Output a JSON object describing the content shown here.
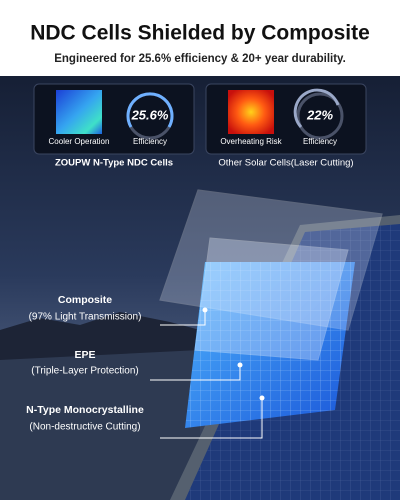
{
  "header": {
    "title": "NDC Cells Shielded by Composite",
    "subtitle": "Engineered for 25.6% efficiency & 20+ year durability."
  },
  "comparison": [
    {
      "thermal_label": "Cooler Operation",
      "efficiency": "25.6%",
      "efficiency_label": "Efficiency",
      "caption": "ZOUPW N-Type NDC Cells"
    },
    {
      "thermal_label": "Overheating Risk",
      "efficiency": "22%",
      "efficiency_label": "Efficiency",
      "caption": "Other Solar Cells(Laser Cutting)"
    }
  ],
  "layers": [
    {
      "name": "Composite",
      "detail": "(97% Light Transmission)"
    },
    {
      "name": "EPE",
      "detail": "(Triple-Layer Protection)"
    },
    {
      "name": "N-Type Monocrystalline",
      "detail": "(Non-destructive Cutting)"
    }
  ]
}
